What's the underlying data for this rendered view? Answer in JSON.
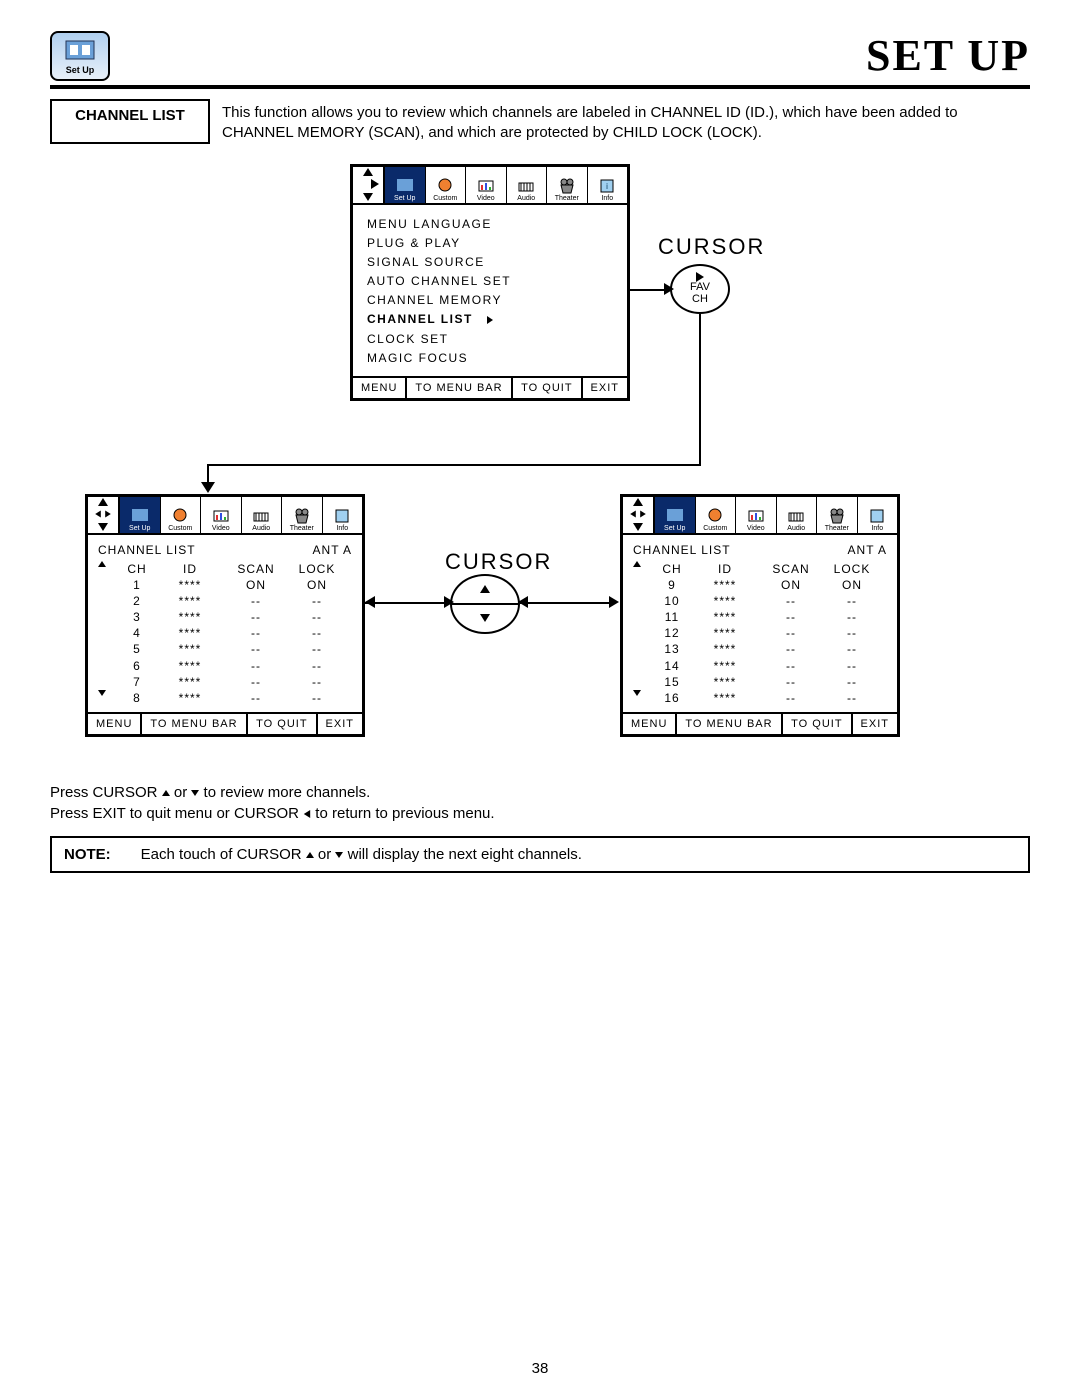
{
  "page_title": "SET UP",
  "page_number": "38",
  "header_icon_label": "Set Up",
  "intro": {
    "label": "CHANNEL LIST",
    "text": "This function allows you to review which channels are labeled in CHANNEL ID (ID.), which have been added to CHANNEL MEMORY (SCAN), and which are protected by CHILD LOCK (LOCK)."
  },
  "osd_icons": [
    "Set Up",
    "Custom",
    "Video",
    "Audio",
    "Theater",
    "Info"
  ],
  "osd_menu": {
    "items": [
      "MENU LANGUAGE",
      "PLUG & PLAY",
      "SIGNAL SOURCE",
      "AUTO CHANNEL SET",
      "CHANNEL MEMORY",
      "CHANNEL LIST",
      "CLOCK SET",
      "MAGIC FOCUS"
    ],
    "selected_index": 5,
    "footer": {
      "c1": "MENU",
      "c2": "TO MENU BAR",
      "c3": "TO QUIT",
      "c4": "EXIT"
    }
  },
  "cursor_label_1": "CURSOR",
  "fav_label1": "FAV",
  "fav_label2": "CH",
  "cursor_label_2": "CURSOR",
  "channel_list": {
    "title": "CHANNEL LIST",
    "ant": "ANT A",
    "columns": [
      "CH",
      "ID",
      "SCAN",
      "LOCK"
    ],
    "left_rows": [
      {
        "ch": "1",
        "id": "****",
        "scan": "ON",
        "lock": "ON"
      },
      {
        "ch": "2",
        "id": "****",
        "scan": "--",
        "lock": "--"
      },
      {
        "ch": "3",
        "id": "****",
        "scan": "--",
        "lock": "--"
      },
      {
        "ch": "4",
        "id": "****",
        "scan": "--",
        "lock": "--"
      },
      {
        "ch": "5",
        "id": "****",
        "scan": "--",
        "lock": "--"
      },
      {
        "ch": "6",
        "id": "****",
        "scan": "--",
        "lock": "--"
      },
      {
        "ch": "7",
        "id": "****",
        "scan": "--",
        "lock": "--"
      },
      {
        "ch": "8",
        "id": "****",
        "scan": "--",
        "lock": "--"
      }
    ],
    "right_rows": [
      {
        "ch": "9",
        "id": "****",
        "scan": "ON",
        "lock": "ON"
      },
      {
        "ch": "10",
        "id": "****",
        "scan": "--",
        "lock": "--"
      },
      {
        "ch": "11",
        "id": "****",
        "scan": "--",
        "lock": "--"
      },
      {
        "ch": "12",
        "id": "****",
        "scan": "--",
        "lock": "--"
      },
      {
        "ch": "13",
        "id": "****",
        "scan": "--",
        "lock": "--"
      },
      {
        "ch": "14",
        "id": "****",
        "scan": "--",
        "lock": "--"
      },
      {
        "ch": "15",
        "id": "****",
        "scan": "--",
        "lock": "--"
      },
      {
        "ch": "16",
        "id": "****",
        "scan": "--",
        "lock": "--"
      }
    ]
  },
  "instructions": {
    "line1_a": "Press CURSOR ",
    "line1_b": " or ",
    "line1_c": " to review more channels.",
    "line2_a": "Press EXIT to quit menu or CURSOR ",
    "line2_b": " to return to previous menu."
  },
  "note": {
    "label": "NOTE:",
    "text_a": "Each touch of CURSOR ",
    "text_b": " or ",
    "text_c": " will display the next eight channels."
  },
  "colors": {
    "iconbar_active_bg": "#0a2a6a",
    "setup_grad_top": "#b0d0f0",
    "setup_grad_bot": "#e8f0f8"
  }
}
